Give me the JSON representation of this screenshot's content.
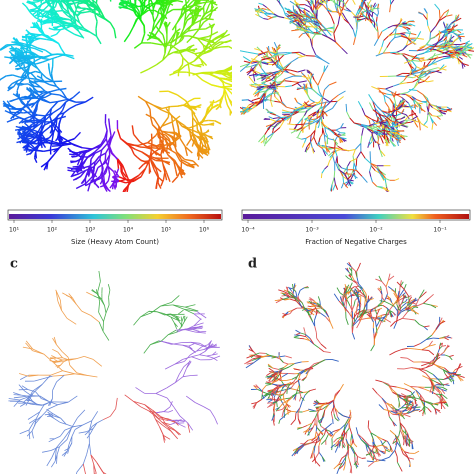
{
  "panels": [
    {
      "colorbar": {
        "label": "Size (Heavy Atom Count)",
        "ticks": [
          "10¹",
          "10²",
          "10³",
          "10⁴",
          "10⁵",
          "10⁶"
        ]
      }
    },
    {
      "colorbar": {
        "label": "Fraction of Negative Charges",
        "ticks": [
          "10⁻⁴",
          "10⁻³",
          "10⁻²",
          "10⁻¹"
        ]
      }
    },
    {
      "label": "c"
    },
    {
      "label": "d"
    }
  ]
}
